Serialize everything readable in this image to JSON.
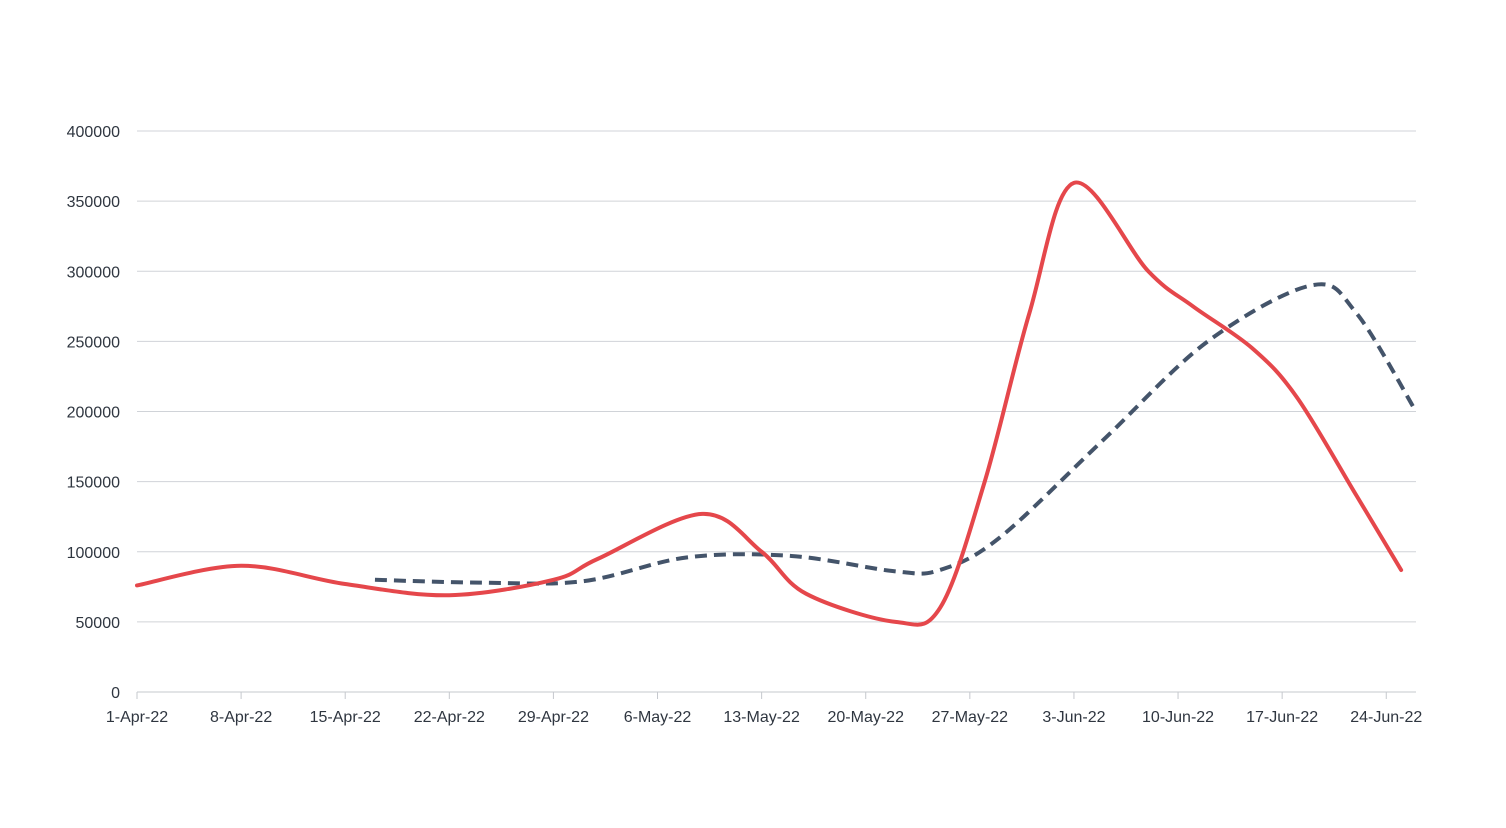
{
  "chart_data": {
    "type": "line",
    "title": "",
    "xlabel": "",
    "ylabel": "",
    "x_ticks": [
      "1-Apr-22",
      "8-Apr-22",
      "15-Apr-22",
      "22-Apr-22",
      "29-Apr-22",
      "6-May-22",
      "13-May-22",
      "20-May-22",
      "27-May-22",
      "3-Jun-22",
      "10-Jun-22",
      "17-Jun-22",
      "24-Jun-22"
    ],
    "x_range": [
      "2022-04-01",
      "2022-06-26"
    ],
    "y_ticks": [
      "0",
      "50000",
      "100000",
      "150000",
      "200000",
      "250000",
      "300000",
      "350000",
      "400000"
    ],
    "ylim": [
      0,
      400000
    ],
    "grid": "horizontal",
    "legend": "none",
    "series": [
      {
        "color": "#e5474b",
        "style": "solid",
        "points": [
          {
            "x": "2022-04-01",
            "y": 76000
          },
          {
            "x": "2022-04-08",
            "y": 90000
          },
          {
            "x": "2022-04-15",
            "y": 77000
          },
          {
            "x": "2022-04-22",
            "y": 69000
          },
          {
            "x": "2022-04-29",
            "y": 80000
          },
          {
            "x": "2022-05-02",
            "y": 95000
          },
          {
            "x": "2022-05-09",
            "y": 127000
          },
          {
            "x": "2022-05-13",
            "y": 100000
          },
          {
            "x": "2022-05-16",
            "y": 70000
          },
          {
            "x": "2022-05-22",
            "y": 50000
          },
          {
            "x": "2022-05-25",
            "y": 60000
          },
          {
            "x": "2022-05-28",
            "y": 150000
          },
          {
            "x": "2022-05-31",
            "y": 270000
          },
          {
            "x": "2022-06-03",
            "y": 363000
          },
          {
            "x": "2022-06-08",
            "y": 300000
          },
          {
            "x": "2022-06-11",
            "y": 275000
          },
          {
            "x": "2022-06-15",
            "y": 245000
          },
          {
            "x": "2022-06-18",
            "y": 210000
          },
          {
            "x": "2022-06-22",
            "y": 140000
          },
          {
            "x": "2022-06-25",
            "y": 87000
          }
        ]
      },
      {
        "color": "#44546a",
        "style": "dashed",
        "points": [
          {
            "x": "2022-04-17",
            "y": 80000
          },
          {
            "x": "2022-04-24",
            "y": 78000
          },
          {
            "x": "2022-05-01",
            "y": 79000
          },
          {
            "x": "2022-05-08",
            "y": 96000
          },
          {
            "x": "2022-05-15",
            "y": 97000
          },
          {
            "x": "2022-05-22",
            "y": 86000
          },
          {
            "x": "2022-05-25",
            "y": 87000
          },
          {
            "x": "2022-05-29",
            "y": 110000
          },
          {
            "x": "2022-06-05",
            "y": 180000
          },
          {
            "x": "2022-06-12",
            "y": 250000
          },
          {
            "x": "2022-06-19",
            "y": 290000
          },
          {
            "x": "2022-06-22",
            "y": 270000
          },
          {
            "x": "2022-06-26",
            "y": 200000
          }
        ]
      }
    ]
  }
}
